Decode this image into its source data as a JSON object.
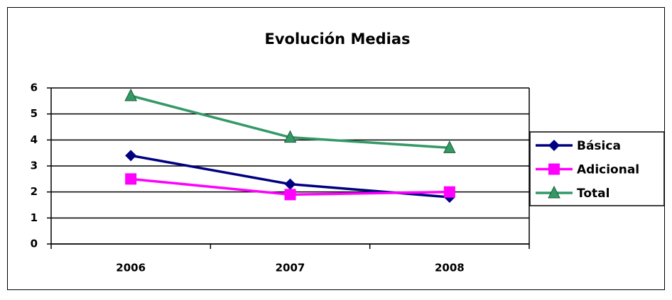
{
  "chart_data": {
    "type": "line",
    "title": "Evolución Medias",
    "categories": [
      "2006",
      "2007",
      "2008"
    ],
    "series": [
      {
        "name": "Básica",
        "color": "#000080",
        "marker": "diamond",
        "values": [
          3.4,
          2.3,
          1.8
        ]
      },
      {
        "name": "Adicional",
        "color": "#ff00ff",
        "marker": "square",
        "values": [
          2.5,
          1.9,
          2.0
        ]
      },
      {
        "name": "Total",
        "color": "#339966",
        "marker": "triangle",
        "values": [
          5.7,
          4.1,
          3.7
        ]
      }
    ],
    "ylim": [
      0,
      6
    ],
    "yticks": [
      0,
      1,
      2,
      3,
      4,
      5,
      6
    ],
    "grid": true,
    "legend": "right"
  }
}
